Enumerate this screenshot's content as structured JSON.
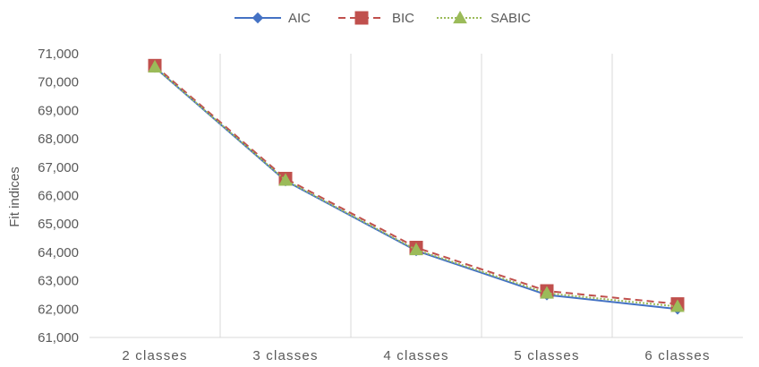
{
  "chart_data": {
    "type": "line",
    "categories": [
      "2 classes",
      "3 classes",
      "4 classes",
      "5 classes",
      "6 classes"
    ],
    "ylabel": "Fit indices",
    "xlabel": "",
    "ylim": [
      61000,
      71000
    ],
    "y_ticks": [
      "61,000",
      "62,000",
      "63,000",
      "64,000",
      "65,000",
      "66,000",
      "67,000",
      "68,000",
      "69,000",
      "70,000",
      "71,000"
    ],
    "grid": "vertical category separators",
    "legend_position": "top",
    "series": [
      {
        "name": "AIC",
        "values": [
          70520,
          66520,
          64060,
          62500,
          62000
        ],
        "color": "#4472C4",
        "dash": "solid",
        "marker": "diamond"
      },
      {
        "name": "BIC",
        "values": [
          70580,
          66600,
          64170,
          62640,
          62180
        ],
        "color": "#C0504D",
        "dash": "dashed",
        "marker": "square"
      },
      {
        "name": "SABIC",
        "values": [
          70530,
          66540,
          64090,
          62560,
          62090
        ],
        "color": "#9BBB59",
        "dash": "dotted",
        "marker": "triangle"
      }
    ]
  }
}
